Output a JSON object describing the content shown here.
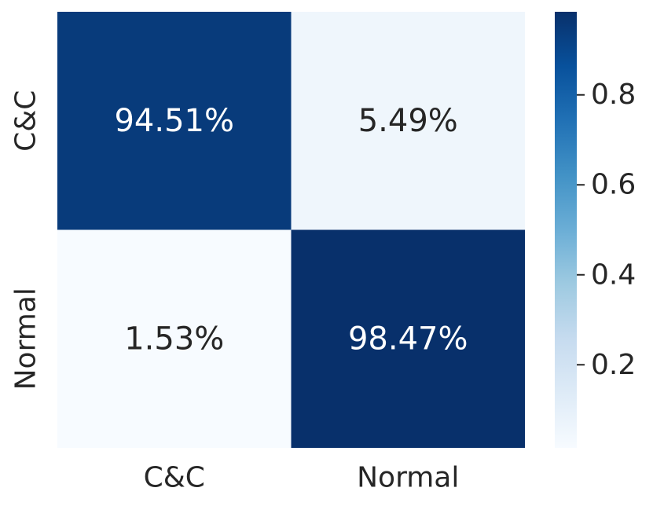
{
  "chart_data": {
    "type": "heatmap",
    "title": "",
    "xlabel": "",
    "ylabel": "",
    "x_categories": [
      "C&C",
      "Normal"
    ],
    "y_categories": [
      "C&C",
      "Normal"
    ],
    "values": [
      [
        0.9451,
        0.0549
      ],
      [
        0.0153,
        0.9847
      ]
    ],
    "cell_labels": [
      [
        "94.51%",
        "5.49%"
      ],
      [
        "1.53%",
        "98.47%"
      ]
    ],
    "colorbar": {
      "range": [
        0.0153,
        0.9847
      ],
      "ticks": [
        0.2,
        0.4,
        0.6,
        0.8
      ],
      "tick_labels": [
        "0.2",
        "0.4",
        "0.6",
        "0.8"
      ],
      "colormap": "Blues"
    },
    "colors": {
      "low": "#f7fbff",
      "high": "#08306b",
      "text_dark": "#262626",
      "text_light": "#ffffff"
    }
  }
}
